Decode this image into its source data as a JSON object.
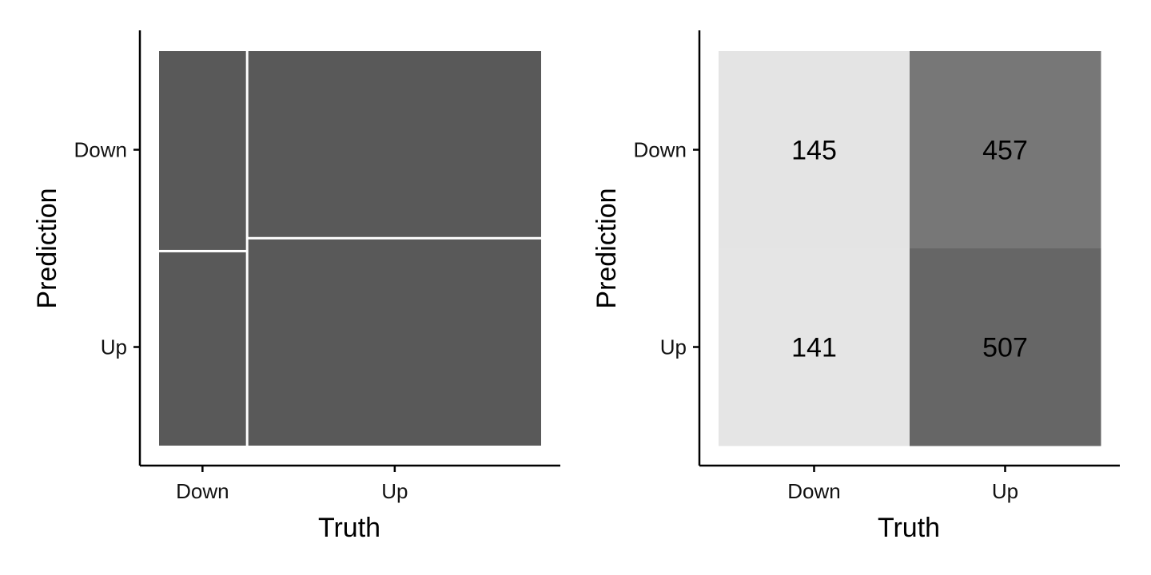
{
  "chart_data": [
    {
      "type": "mosaic",
      "categories_x": [
        "Down",
        "Up"
      ],
      "categories_y": [
        "Down",
        "Up"
      ],
      "xlabel": "Truth",
      "ylabel": "Prediction",
      "cells": [
        {
          "truth": "Down",
          "prediction": "Down",
          "count": 145
        },
        {
          "truth": "Down",
          "prediction": "Up",
          "count": 141
        },
        {
          "truth": "Up",
          "prediction": "Down",
          "count": 457
        },
        {
          "truth": "Up",
          "prediction": "Up",
          "count": 507
        }
      ],
      "fill_color": "#595959",
      "grid": false
    },
    {
      "type": "heatmap",
      "categories_x": [
        "Down",
        "Up"
      ],
      "categories_y": [
        "Down",
        "Up"
      ],
      "xlabel": "Truth",
      "ylabel": "Prediction",
      "cells": [
        {
          "truth": "Down",
          "prediction": "Down",
          "count": 145
        },
        {
          "truth": "Down",
          "prediction": "Up",
          "count": 141
        },
        {
          "truth": "Up",
          "prediction": "Down",
          "count": 457
        },
        {
          "truth": "Up",
          "prediction": "Up",
          "count": 507
        }
      ],
      "color_low": "#e5e5e5",
      "color_high": "#666666",
      "grid": false
    }
  ]
}
